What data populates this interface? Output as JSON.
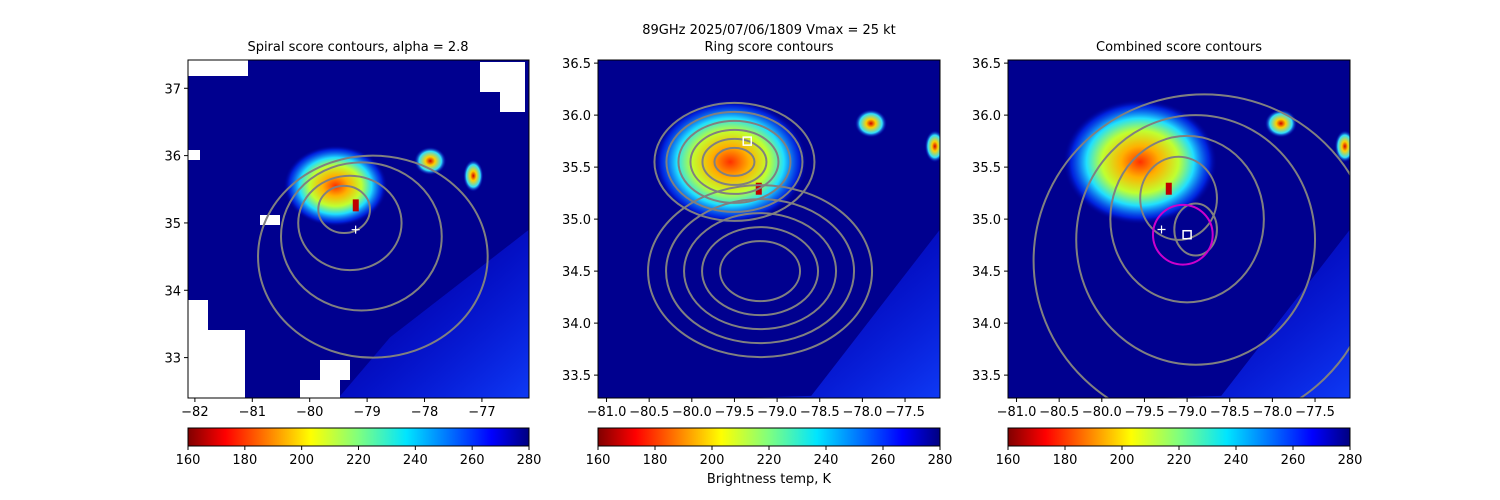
{
  "suptitle": "89GHz  2025/07/06/1809    Vmax = 25 kt",
  "colorbar_label": "Brightness temp, K",
  "colormap": "jet_r",
  "chart_data": [
    {
      "type": "heatmap",
      "title": "Spiral score contours, alpha =  2.8",
      "xlim": [
        -82.12,
        -76.18
      ],
      "ylim": [
        32.4,
        37.42
      ],
      "xticks": [
        -82,
        -81,
        -80,
        -79,
        -78,
        -77
      ],
      "xtick_labels": [
        "−82",
        "−81",
        "−80",
        "−79",
        "−78",
        "−77"
      ],
      "yticks": [
        33,
        34,
        35,
        36,
        37
      ],
      "ytick_labels": [
        "33",
        "34",
        "35",
        "36",
        "37"
      ],
      "colorbar": {
        "range": [
          160,
          280
        ],
        "ticks": [
          "160",
          "180",
          "200",
          "220",
          "240",
          "260",
          "280"
        ]
      },
      "markers": [
        {
          "type": "plus",
          "lon": -79.2,
          "lat": 34.9,
          "color": "#ffffff"
        }
      ],
      "contour_color": "#808080"
    },
    {
      "type": "heatmap",
      "title": "Ring score contours",
      "xlim": [
        -81.1,
        -77.09
      ],
      "ylim": [
        33.28,
        36.53
      ],
      "xticks": [
        -81.0,
        -80.5,
        -80.0,
        -79.5,
        -79.0,
        -78.5,
        -78.0,
        -77.5
      ],
      "xtick_labels": [
        "−81.0",
        "−80.5",
        "−80.0",
        "−79.5",
        "−79.0",
        "−78.5",
        "−78.0",
        "−77.5"
      ],
      "yticks": [
        33.5,
        34.0,
        34.5,
        35.0,
        35.5,
        36.0,
        36.5
      ],
      "ytick_labels": [
        "33.5",
        "34.0",
        "34.5",
        "35.0",
        "35.5",
        "36.0",
        "36.5"
      ],
      "colorbar": {
        "range": [
          160,
          280
        ],
        "ticks": [
          "160",
          "180",
          "200",
          "220",
          "240",
          "260",
          "280"
        ]
      },
      "markers": [
        {
          "type": "square",
          "lon": -79.35,
          "lat": 35.75,
          "color": "#ffffff"
        }
      ],
      "contour_color": "#808080"
    },
    {
      "type": "heatmap",
      "title": "Combined score contours",
      "xlim": [
        -81.1,
        -77.09
      ],
      "ylim": [
        33.28,
        36.53
      ],
      "xticks": [
        -81.0,
        -80.5,
        -80.0,
        -79.5,
        -79.0,
        -78.5,
        -78.0,
        -77.5
      ],
      "xtick_labels": [
        "−81.0",
        "−80.5",
        "−80.0",
        "−79.5",
        "−79.0",
        "−78.5",
        "−78.0",
        "−77.5"
      ],
      "yticks": [
        33.5,
        34.0,
        34.5,
        35.0,
        35.5,
        36.0,
        36.5
      ],
      "ytick_labels": [
        "33.5",
        "34.0",
        "34.5",
        "35.0",
        "35.5",
        "36.0",
        "36.5"
      ],
      "colorbar": {
        "range": [
          160,
          280
        ],
        "ticks": [
          "160",
          "180",
          "200",
          "220",
          "240",
          "260",
          "280"
        ]
      },
      "markers": [
        {
          "type": "plus",
          "lon": -79.3,
          "lat": 34.9,
          "color": "#ffffff"
        },
        {
          "type": "square",
          "lon": -79.0,
          "lat": 34.85,
          "color": "#ffffff"
        },
        {
          "type": "circle",
          "lon": -79.05,
          "lat": 34.85,
          "radius_deg": 0.35,
          "color": "#cc00cc"
        }
      ],
      "contour_color": "#808080"
    }
  ]
}
